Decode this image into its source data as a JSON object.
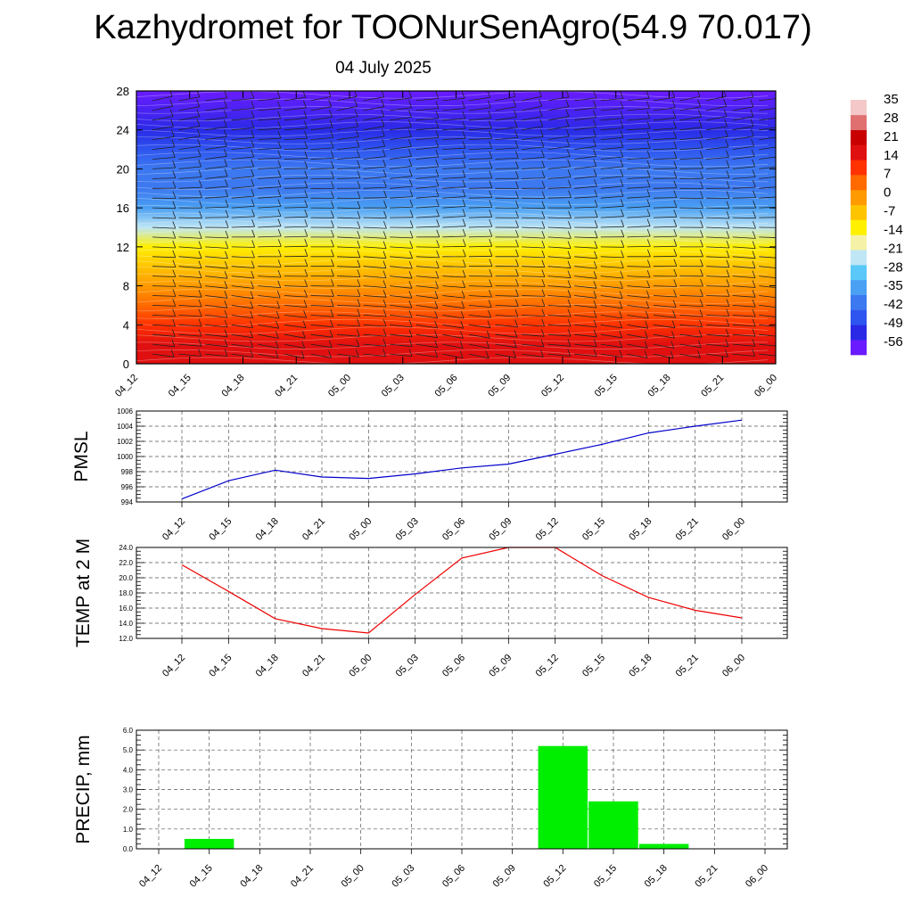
{
  "header": {
    "title": "Kazhydromet for TOONurSenAgro(54.9 70.017)",
    "date": "04 July 2025"
  },
  "chart_data": [
    {
      "type": "heatmap",
      "name": "cross-section",
      "x_ticks": [
        "04_12",
        "04_15",
        "04_18",
        "04_21",
        "05_00",
        "05_03",
        "05_06",
        "05_09",
        "05_12",
        "05_15",
        "05_18",
        "05_21",
        "06_00"
      ],
      "ylim": [
        0,
        28
      ],
      "y_ticks": [
        "0",
        "4",
        "8",
        "12",
        "16",
        "20",
        "24",
        "28"
      ],
      "colorbar": {
        "levels": [
          "35",
          "28",
          "21",
          "14",
          "7",
          "0",
          "-7",
          "-14",
          "-21",
          "-28",
          "-35",
          "-42",
          "-49",
          "-56"
        ],
        "min": -63,
        "max": 42,
        "colors": [
          "#6a1bff",
          "#2a2ae6",
          "#2e55ef",
          "#3c78f0",
          "#4aa0f3",
          "#5ac8f8",
          "#bfe6f5",
          "#f5f2a8",
          "#fff000",
          "#ffc400",
          "#ff9a00",
          "#ff6a00",
          "#ff3200",
          "#e01010",
          "#c80000",
          "#e07070",
          "#f4c8c8"
        ]
      },
      "bands_by_level": [
        {
          "level": 0,
          "value": 20
        },
        {
          "level": 2,
          "value": 18
        },
        {
          "level": 4,
          "value": 12
        },
        {
          "level": 6,
          "value": 6
        },
        {
          "level": 8,
          "value": 1
        },
        {
          "level": 10,
          "value": -4
        },
        {
          "level": 12,
          "value": -12
        },
        {
          "level": 14,
          "value": -24
        },
        {
          "level": 16,
          "value": -33
        },
        {
          "level": 18,
          "value": -39
        },
        {
          "level": 20,
          "value": -44
        },
        {
          "level": 22,
          "value": -50
        },
        {
          "level": 24,
          "value": -56
        },
        {
          "level": 28,
          "value": -60
        }
      ],
      "wind_barbs": "present"
    },
    {
      "type": "line",
      "name": "pmsl",
      "ylabel": "PMSL",
      "categories": [
        "04_12",
        "04_15",
        "04_18",
        "04_21",
        "05_00",
        "05_03",
        "05_06",
        "05_09",
        "05_12",
        "05_15",
        "05_18",
        "05_21",
        "06_00"
      ],
      "values": [
        994.4,
        996.8,
        998.2,
        997.3,
        997.1,
        997.7,
        998.5,
        999.0,
        1000.3,
        1001.6,
        1003.1,
        1004.0,
        1004.8
      ],
      "ylim": [
        994,
        1006
      ],
      "y_ticks": [
        "994",
        "996",
        "998",
        "1000",
        "1002",
        "1004",
        "1006"
      ],
      "color": "#0000cc",
      "grid": true
    },
    {
      "type": "line",
      "name": "temp2m",
      "ylabel": "TEMP at 2 M",
      "categories": [
        "04_12",
        "04_15",
        "04_18",
        "04_21",
        "05_00",
        "05_03",
        "05_06",
        "05_09",
        "05_12",
        "05_15",
        "05_18",
        "05_21",
        "06_00"
      ],
      "values": [
        21.7,
        18.2,
        14.6,
        13.3,
        12.7,
        17.8,
        22.6,
        24.0,
        24.0,
        20.3,
        17.4,
        15.7,
        14.7
      ],
      "ylim": [
        12,
        24
      ],
      "y_ticks": [
        "12.0",
        "14.0",
        "16.0",
        "18.0",
        "20.0",
        "22.0",
        "24.0"
      ],
      "color": "#ee0000",
      "grid": true
    },
    {
      "type": "bar",
      "name": "precip",
      "ylabel": "PRECIP, mm",
      "categories": [
        "04_12",
        "04_15",
        "04_18",
        "04_21",
        "05_00",
        "05_03",
        "05_06",
        "05_09",
        "05_12",
        "05_15",
        "05_18",
        "05_21",
        "06_00"
      ],
      "values": [
        0,
        0.5,
        0,
        0,
        0,
        0,
        0,
        0,
        5.2,
        2.4,
        0.25,
        0,
        0
      ],
      "ylim": [
        0,
        6
      ],
      "y_ticks": [
        "0.0",
        "1.0",
        "2.0",
        "3.0",
        "4.0",
        "5.0",
        "6.0"
      ],
      "color": "#00ee00",
      "grid": true
    }
  ]
}
